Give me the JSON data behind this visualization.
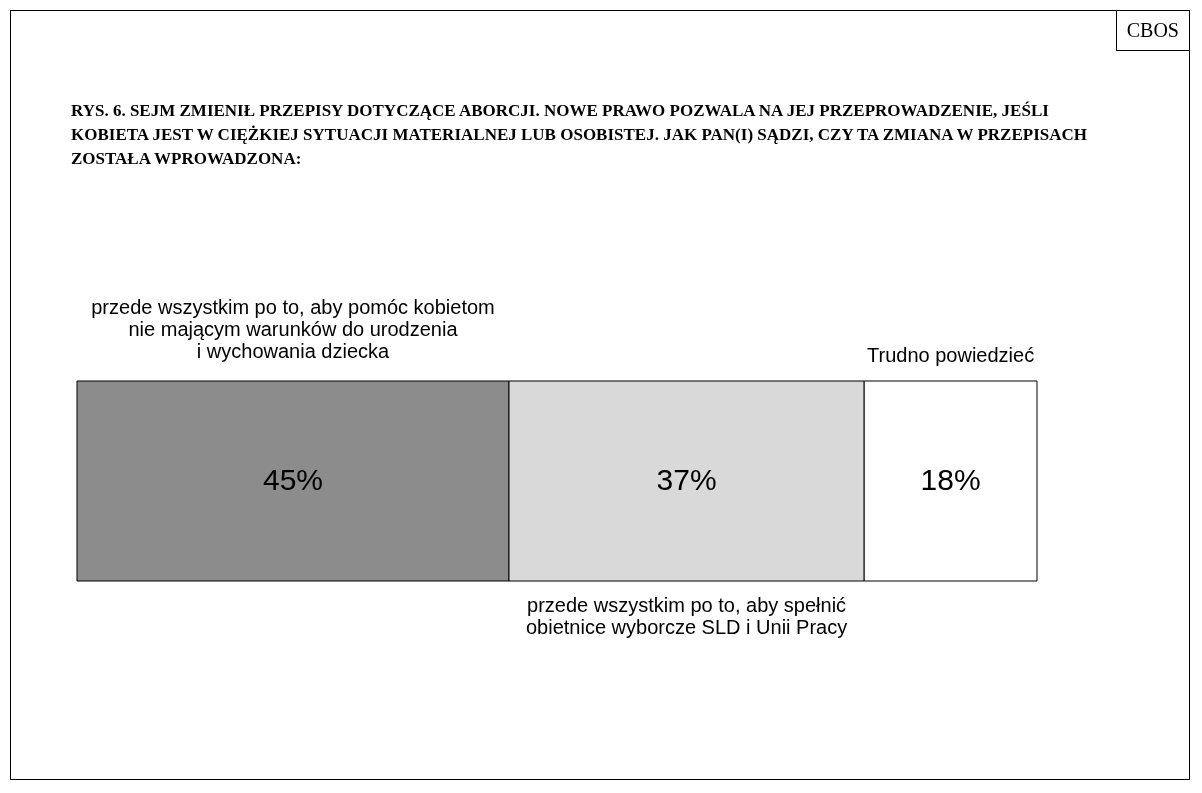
{
  "chart_data": {
    "type": "bar",
    "orientation": "horizontal",
    "stacked": true,
    "legend": false,
    "title": "RYS. 6. SEJM ZMIENIŁ PRZEPISY DOTYCZĄCE ABORCJI. NOWE PRAWO POZWALA NA JEJ PRZEPROWADZENIE, JEŚLI KOBIETA JEST W CIĘŻKIEJ SYTUACJI MATERIALNEJ LUB OSOBISTEJ. JAK PAN(I) SĄDZI, CZY TA ZMIANA W PRZEPISACH ZOSTAŁA WPROWADZONA:",
    "annotations": [
      "CBOS"
    ],
    "categories": [
      null
    ],
    "series": [
      {
        "name": "przede wszystkim po to, aby pomóc kobietom\nnie mającym warunków do urodzenia\n i wychowania dziecka",
        "color": "#8c8c8c",
        "values": [
          45
        ],
        "value_labels": [
          "45%"
        ]
      },
      {
        "name": "przede wszystkim po to, aby spełnić\nobietnice wyborcze SLD i Unii Pracy",
        "color": "#d9d9d9",
        "values": [
          37
        ],
        "value_labels": [
          "37%"
        ]
      },
      {
        "name": "Trudno powiedzieć",
        "color": "#ffffff",
        "values": [
          18
        ],
        "value_labels": [
          "18%"
        ]
      }
    ]
  }
}
